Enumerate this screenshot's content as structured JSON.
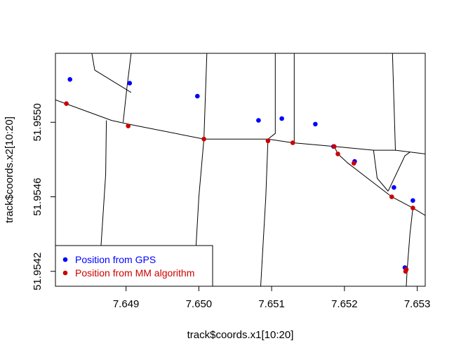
{
  "chart_data": {
    "type": "scatter",
    "title": "",
    "xlabel": "track$coords.x1[10:20]",
    "ylabel": "track$coords.x2[10:20]",
    "xlim": [
      7.64803,
      7.65311
    ],
    "ylim": [
      51.95412,
      51.95537
    ],
    "x_ticks": [
      {
        "value": 7.649,
        "label": "7.649"
      },
      {
        "value": 7.65,
        "label": "7.650"
      },
      {
        "value": 7.651,
        "label": "7.651"
      },
      {
        "value": 7.652,
        "label": "7.652"
      },
      {
        "value": 7.653,
        "label": "7.653"
      }
    ],
    "y_ticks": [
      {
        "value": 51.9542,
        "label": "51.9542"
      },
      {
        "value": 51.9546,
        "label": "51.9546"
      },
      {
        "value": 51.955,
        "label": "51.9550"
      }
    ],
    "legend": {
      "position": "bottom-left",
      "entries": [
        {
          "label": "Position from GPS",
          "color": "#0000ff"
        },
        {
          "label": "Position from MM algorithm",
          "color": "#cc0000"
        }
      ]
    },
    "series": [
      {
        "name": "Position from GPS",
        "color": "#0000ff",
        "points": [
          [
            7.64823,
            51.95523
          ],
          [
            7.64905,
            51.95521
          ],
          [
            7.64998,
            51.95514
          ],
          [
            7.65082,
            51.95501
          ],
          [
            7.65114,
            51.95502
          ],
          [
            7.6516,
            51.95499
          ],
          [
            7.65185,
            51.95487
          ],
          [
            7.65214,
            51.95479
          ],
          [
            7.65268,
            51.95465
          ],
          [
            7.65294,
            51.95458
          ],
          [
            7.65283,
            51.95422
          ]
        ]
      },
      {
        "name": "Position from MM algorithm",
        "color": "#cc0000",
        "points": [
          [
            7.64818,
            51.9551
          ],
          [
            7.64903,
            51.95498
          ],
          [
            7.65007,
            51.95491
          ],
          [
            7.65095,
            51.9549
          ],
          [
            7.65129,
            51.95489
          ],
          [
            7.65186,
            51.95487
          ],
          [
            7.65191,
            51.95483
          ],
          [
            7.65213,
            51.95478
          ],
          [
            7.65265,
            51.9546
          ],
          [
            7.65294,
            51.95454
          ],
          [
            7.65285,
            51.95421
          ],
          [
            7.65284,
            51.9542
          ]
        ]
      }
    ],
    "road_segments": [
      [
        [
          7.64803,
          51.95512
        ],
        [
          7.6488,
          51.95501
        ],
        [
          7.64903,
          51.95499
        ],
        [
          7.65007,
          51.95491
        ],
        [
          7.65095,
          51.95491
        ],
        [
          7.65129,
          51.95489
        ],
        [
          7.65186,
          51.95487
        ],
        [
          7.6524,
          51.95485
        ],
        [
          7.6527,
          51.95485
        ],
        [
          7.65311,
          51.95483
        ]
      ],
      [
        [
          7.65186,
          51.95487
        ],
        [
          7.65191,
          51.95483
        ],
        [
          7.65205,
          51.95478
        ],
        [
          7.65265,
          51.9546
        ],
        [
          7.65294,
          51.95454
        ],
        [
          7.65311,
          51.9545
        ]
      ],
      [
        [
          7.65294,
          51.95454
        ],
        [
          7.6529,
          51.9544
        ],
        [
          7.65286,
          51.9542
        ],
        [
          7.65285,
          51.95412
        ]
      ],
      [
        [
          7.64862,
          51.95412
        ],
        [
          7.64872,
          51.95472
        ],
        [
          7.64873,
          51.95501
        ]
      ],
      [
        [
          7.64896,
          51.955
        ],
        [
          7.64901,
          51.95518
        ],
        [
          7.64907,
          51.95537
        ]
      ],
      [
        [
          7.64857,
          51.95528
        ],
        [
          7.64907,
          51.95516
        ]
      ],
      [
        [
          7.64853,
          51.95537
        ],
        [
          7.64857,
          51.95528
        ]
      ],
      [
        [
          7.64993,
          51.95412
        ],
        [
          7.65,
          51.9546
        ],
        [
          7.65007,
          51.95491
        ],
        [
          7.65011,
          51.95537
        ]
      ],
      [
        [
          7.65085,
          51.95412
        ],
        [
          7.65092,
          51.9546
        ],
        [
          7.65095,
          51.95491
        ],
        [
          7.65105,
          51.95494
        ],
        [
          7.65105,
          51.95537
        ]
      ],
      [
        [
          7.65131,
          51.95489
        ],
        [
          7.65131,
          51.95537
        ]
      ],
      [
        [
          7.6527,
          51.95485
        ],
        [
          7.65266,
          51.95537
        ]
      ],
      [
        [
          7.6524,
          51.95485
        ],
        [
          7.65245,
          51.9547
        ],
        [
          7.6526,
          51.95463
        ]
      ],
      [
        [
          7.6526,
          51.95463
        ],
        [
          7.65283,
          51.95482
        ],
        [
          7.6529,
          51.95484
        ]
      ]
    ]
  }
}
